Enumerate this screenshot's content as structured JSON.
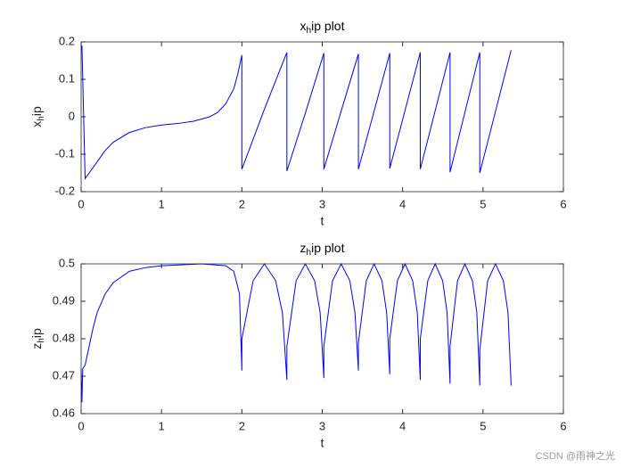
{
  "chart_data": [
    {
      "type": "line",
      "title": "x_hip plot",
      "xlabel": "t",
      "ylabel": "x_hip",
      "color": "#0000ff",
      "x": [
        0,
        0.01,
        0.05,
        0.1,
        0.2,
        0.3,
        0.4,
        0.6,
        0.8,
        1.0,
        1.2,
        1.4,
        1.6,
        1.7,
        1.8,
        1.9,
        1.95,
        2.0,
        2.0,
        2.28,
        2.56,
        2.56,
        2.79,
        3.02,
        3.02,
        3.235,
        3.45,
        3.45,
        3.645,
        3.84,
        3.84,
        4.03,
        4.22,
        4.22,
        4.405,
        4.59,
        4.59,
        4.775,
        4.96,
        4.96,
        5.155,
        5.35
      ],
      "values": [
        0.18,
        0.19,
        -0.165,
        -0.15,
        -0.12,
        -0.09,
        -0.068,
        -0.042,
        -0.029,
        -0.022,
        -0.018,
        -0.012,
        0.0,
        0.012,
        0.035,
        0.075,
        0.115,
        0.165,
        -0.14,
        0.02,
        0.172,
        -0.145,
        0.01,
        0.17,
        -0.14,
        0.015,
        0.168,
        -0.14,
        0.015,
        0.17,
        -0.138,
        0.017,
        0.172,
        -0.14,
        0.016,
        0.172,
        -0.148,
        0.012,
        0.172,
        -0.15,
        0.014,
        0.178
      ],
      "xlim": [
        0,
        6
      ],
      "ylim": [
        -0.2,
        0.2
      ],
      "xticks": [
        0,
        1,
        2,
        3,
        4,
        5,
        6
      ],
      "yticks": [
        -0.2,
        -0.1,
        0,
        0.1,
        0.2
      ]
    },
    {
      "type": "line",
      "title": "z_hip plot",
      "xlabel": "t",
      "ylabel": "z_hip",
      "color": "#0000ff",
      "x": [
        0,
        0.01,
        0.02,
        0.05,
        0.1,
        0.15,
        0.2,
        0.3,
        0.4,
        0.6,
        0.8,
        1.0,
        1.5,
        1.8,
        1.9,
        1.97,
        2.0,
        2.0,
        2.14,
        2.28,
        2.42,
        2.504,
        2.56,
        2.56,
        2.675,
        2.79,
        2.905,
        2.974,
        3.02,
        3.02,
        3.128,
        3.235,
        3.343,
        3.407,
        3.45,
        3.45,
        3.548,
        3.645,
        3.743,
        3.801,
        3.84,
        3.84,
        3.935,
        4.03,
        4.125,
        4.182,
        4.22,
        4.22,
        4.313,
        4.405,
        4.498,
        4.553,
        4.59,
        4.59,
        4.683,
        4.775,
        4.868,
        4.923,
        4.96,
        4.96,
        5.058,
        5.155,
        5.253,
        5.311,
        5.35
      ],
      "values": [
        0.472,
        0.463,
        0.472,
        0.473,
        0.478,
        0.483,
        0.487,
        0.492,
        0.495,
        0.498,
        0.499,
        0.4995,
        0.5,
        0.4995,
        0.498,
        0.492,
        0.4715,
        0.48,
        0.4955,
        0.5,
        0.4955,
        0.487,
        0.469,
        0.478,
        0.4955,
        0.5,
        0.4955,
        0.487,
        0.4695,
        0.478,
        0.4955,
        0.5,
        0.4955,
        0.487,
        0.4715,
        0.479,
        0.4955,
        0.5,
        0.4955,
        0.487,
        0.4705,
        0.48,
        0.4955,
        0.5,
        0.4955,
        0.487,
        0.469,
        0.48,
        0.4955,
        0.5,
        0.4955,
        0.487,
        0.468,
        0.478,
        0.4955,
        0.5,
        0.4955,
        0.487,
        0.4675,
        0.477,
        0.4955,
        0.5,
        0.4955,
        0.487,
        0.4675
      ],
      "xlim": [
        0,
        6
      ],
      "ylim": [
        0.46,
        0.5
      ],
      "xticks": [
        0,
        1,
        2,
        3,
        4,
        5,
        6
      ],
      "yticks": [
        0.46,
        0.47,
        0.48,
        0.49,
        0.5
      ]
    }
  ],
  "watermark": "CSDN @雨神之光"
}
